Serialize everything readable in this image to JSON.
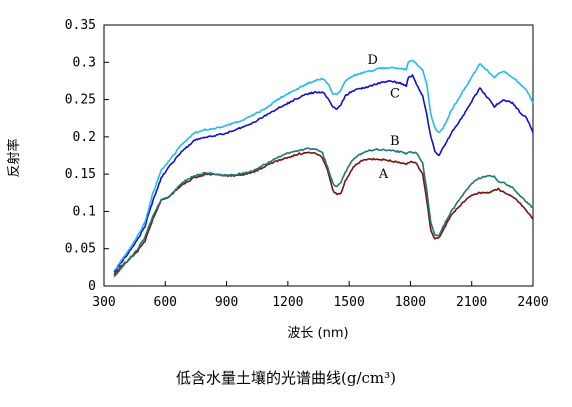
{
  "chart_data": {
    "type": "line",
    "title": "低含水量土壤的光谱曲线(g/cm³)",
    "xlabel": "波长 (nm)",
    "ylabel": "反射率",
    "xlim": [
      300,
      2400
    ],
    "ylim": [
      0,
      0.35
    ],
    "xticks": [
      300,
      600,
      900,
      1200,
      1500,
      1800,
      2100,
      2400
    ],
    "yticks": [
      0,
      0.05,
      0.1,
      0.15,
      0.2,
      0.25,
      0.3,
      0.35
    ],
    "ytick_labels": [
      "0",
      "0.05",
      "0.1",
      "0.15",
      "0.2",
      "0.25",
      "0.3",
      "0.35"
    ],
    "grid": false,
    "legend": "inline labels",
    "series": [
      {
        "name": "A",
        "color": "#7b1212",
        "x": [
          350,
          380,
          420,
          460,
          500,
          540,
          580,
          620,
          680,
          740,
          800,
          850,
          900,
          950,
          1000,
          1050,
          1100,
          1150,
          1200,
          1250,
          1300,
          1340,
          1370,
          1400,
          1420,
          1440,
          1460,
          1480,
          1520,
          1560,
          1600,
          1650,
          1700,
          1750,
          1780,
          1800,
          1830,
          1860,
          1880,
          1900,
          1920,
          1940,
          1960,
          2000,
          2050,
          2100,
          2140,
          2180,
          2210,
          2230,
          2260,
          2300,
          2340,
          2370,
          2400
        ],
        "y": [
          0.015,
          0.025,
          0.035,
          0.045,
          0.06,
          0.09,
          0.115,
          0.12,
          0.135,
          0.145,
          0.15,
          0.15,
          0.148,
          0.148,
          0.15,
          0.155,
          0.162,
          0.168,
          0.172,
          0.177,
          0.179,
          0.178,
          0.172,
          0.15,
          0.128,
          0.122,
          0.125,
          0.14,
          0.16,
          0.168,
          0.17,
          0.17,
          0.168,
          0.165,
          0.163,
          0.167,
          0.164,
          0.15,
          0.115,
          0.075,
          0.063,
          0.065,
          0.075,
          0.095,
          0.11,
          0.122,
          0.125,
          0.125,
          0.128,
          0.13,
          0.125,
          0.12,
          0.11,
          0.1,
          0.09
        ]
      },
      {
        "name": "B",
        "color": "#1a7a72",
        "x": [
          350,
          380,
          420,
          460,
          500,
          540,
          580,
          620,
          680,
          740,
          800,
          850,
          900,
          950,
          1000,
          1050,
          1100,
          1150,
          1200,
          1250,
          1300,
          1340,
          1370,
          1400,
          1420,
          1440,
          1460,
          1480,
          1520,
          1560,
          1600,
          1650,
          1700,
          1750,
          1780,
          1800,
          1830,
          1860,
          1880,
          1900,
          1920,
          1940,
          1960,
          2000,
          2050,
          2100,
          2140,
          2180,
          2210,
          2230,
          2260,
          2300,
          2340,
          2370,
          2400
        ],
        "y": [
          0.012,
          0.022,
          0.035,
          0.048,
          0.065,
          0.095,
          0.115,
          0.12,
          0.138,
          0.148,
          0.152,
          0.15,
          0.148,
          0.15,
          0.152,
          0.157,
          0.165,
          0.172,
          0.178,
          0.182,
          0.184,
          0.183,
          0.178,
          0.155,
          0.138,
          0.133,
          0.138,
          0.152,
          0.17,
          0.178,
          0.182,
          0.183,
          0.182,
          0.18,
          0.177,
          0.18,
          0.178,
          0.165,
          0.128,
          0.085,
          0.068,
          0.068,
          0.08,
          0.1,
          0.12,
          0.138,
          0.145,
          0.148,
          0.147,
          0.14,
          0.138,
          0.132,
          0.12,
          0.112,
          0.105
        ]
      },
      {
        "name": "C",
        "color": "#1111cc",
        "x": [
          350,
          380,
          420,
          460,
          500,
          540,
          580,
          620,
          680,
          740,
          800,
          850,
          900,
          950,
          1000,
          1050,
          1100,
          1150,
          1200,
          1250,
          1300,
          1340,
          1370,
          1400,
          1420,
          1440,
          1460,
          1480,
          1520,
          1560,
          1600,
          1650,
          1700,
          1750,
          1780,
          1790,
          1810,
          1830,
          1860,
          1880,
          1900,
          1920,
          1940,
          1960,
          2000,
          2050,
          2100,
          2140,
          2180,
          2210,
          2230,
          2260,
          2300,
          2340,
          2370,
          2400
        ],
        "y": [
          0.018,
          0.03,
          0.045,
          0.06,
          0.08,
          0.115,
          0.145,
          0.16,
          0.18,
          0.195,
          0.2,
          0.202,
          0.205,
          0.21,
          0.215,
          0.222,
          0.23,
          0.238,
          0.245,
          0.252,
          0.258,
          0.26,
          0.26,
          0.25,
          0.24,
          0.237,
          0.243,
          0.255,
          0.262,
          0.265,
          0.268,
          0.272,
          0.275,
          0.272,
          0.268,
          0.28,
          0.282,
          0.27,
          0.255,
          0.23,
          0.2,
          0.18,
          0.175,
          0.185,
          0.205,
          0.225,
          0.248,
          0.265,
          0.252,
          0.24,
          0.245,
          0.25,
          0.245,
          0.232,
          0.225,
          0.205
        ]
      },
      {
        "name": "D",
        "color": "#22bbf0",
        "x": [
          350,
          380,
          420,
          460,
          500,
          540,
          580,
          620,
          680,
          740,
          800,
          850,
          900,
          950,
          1000,
          1050,
          1100,
          1150,
          1200,
          1250,
          1300,
          1340,
          1370,
          1400,
          1420,
          1440,
          1460,
          1480,
          1520,
          1560,
          1600,
          1650,
          1700,
          1750,
          1780,
          1790,
          1810,
          1830,
          1860,
          1880,
          1900,
          1920,
          1940,
          1960,
          2000,
          2050,
          2100,
          2140,
          2180,
          2210,
          2230,
          2260,
          2300,
          2340,
          2370,
          2400
        ],
        "y": [
          0.02,
          0.032,
          0.048,
          0.065,
          0.085,
          0.125,
          0.155,
          0.168,
          0.19,
          0.205,
          0.21,
          0.212,
          0.215,
          0.22,
          0.225,
          0.232,
          0.24,
          0.25,
          0.258,
          0.265,
          0.272,
          0.276,
          0.278,
          0.27,
          0.258,
          0.257,
          0.262,
          0.275,
          0.282,
          0.285,
          0.288,
          0.292,
          0.293,
          0.292,
          0.29,
          0.3,
          0.302,
          0.298,
          0.29,
          0.27,
          0.23,
          0.212,
          0.205,
          0.212,
          0.235,
          0.258,
          0.28,
          0.298,
          0.288,
          0.28,
          0.285,
          0.288,
          0.28,
          0.27,
          0.262,
          0.245
        ]
      }
    ]
  }
}
